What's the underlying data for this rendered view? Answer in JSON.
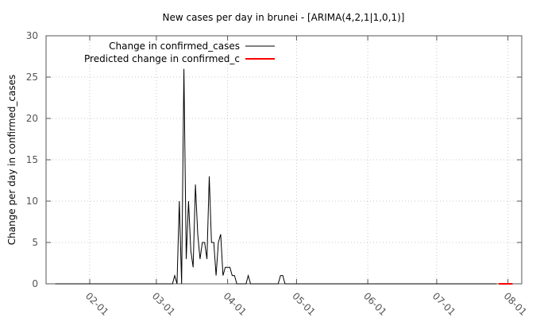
{
  "chart_data": {
    "type": "line",
    "title": "New cases per day in brunei -  [ARIMA(4,2,1|1,0,1)]",
    "xlabel": "",
    "ylabel": "Change per day in confirmed_cases",
    "ylim": [
      0,
      30
    ],
    "y_ticks": [
      "0",
      "5",
      "10",
      "15",
      "20",
      "25",
      "30"
    ],
    "x_ticks": [
      "02-01",
      "03-01",
      "04-01",
      "05-01",
      "06-01",
      "07-01",
      "08-01"
    ],
    "x_unit": "date (2020)",
    "grid": true,
    "legend_position": "top-left",
    "series": [
      {
        "name": "Change in confirmed_cases",
        "color": "#000000",
        "x": [
          "01-17",
          "01-23",
          "02-01",
          "02-10",
          "02-20",
          "03-01",
          "03-05",
          "03-07",
          "03-08",
          "03-09",
          "03-10",
          "03-11",
          "03-12",
          "03-13",
          "03-14",
          "03-15",
          "03-16",
          "03-17",
          "03-18",
          "03-19",
          "03-20",
          "03-21",
          "03-22",
          "03-23",
          "03-24",
          "03-25",
          "03-26",
          "03-27",
          "03-28",
          "03-29",
          "03-30",
          "03-31",
          "04-01",
          "04-02",
          "04-03",
          "04-04",
          "04-05",
          "04-06",
          "04-07",
          "04-08",
          "04-09",
          "04-10",
          "04-11",
          "04-12",
          "04-13",
          "04-14",
          "04-15",
          "04-16",
          "04-17",
          "04-18",
          "04-19",
          "04-20",
          "04-21",
          "04-22",
          "04-23",
          "04-24",
          "04-25",
          "04-26",
          "04-27",
          "04-28",
          "04-29",
          "04-30",
          "05-01",
          "05-02",
          "05-03",
          "05-04",
          "05-05",
          "05-06",
          "05-07",
          "05-08",
          "05-09",
          "05-10",
          "05-15",
          "05-25",
          "06-05",
          "06-20",
          "07-05",
          "07-20",
          "07-27"
        ],
        "y": [
          0,
          0,
          0,
          0,
          0,
          0,
          0,
          0,
          0,
          1,
          0,
          10,
          0,
          26,
          3,
          10,
          4,
          2,
          12,
          6,
          3,
          5,
          5,
          3,
          13,
          5,
          5,
          1,
          5,
          6,
          1,
          2,
          2,
          2,
          1,
          1,
          0,
          0,
          0,
          0,
          0,
          1,
          0,
          0,
          0,
          0,
          0,
          0,
          0,
          0,
          0,
          0,
          0,
          0,
          0,
          1,
          1,
          0,
          0,
          0,
          0,
          0,
          0,
          0,
          0,
          0,
          0,
          0,
          0,
          0,
          0,
          0,
          0,
          0,
          0,
          0,
          0,
          0,
          0
        ]
      },
      {
        "name": "Predicted change in confirmed_c",
        "color": "#ff0000",
        "x": [
          "07-28",
          "08-03"
        ],
        "y": [
          0,
          0
        ]
      }
    ]
  }
}
